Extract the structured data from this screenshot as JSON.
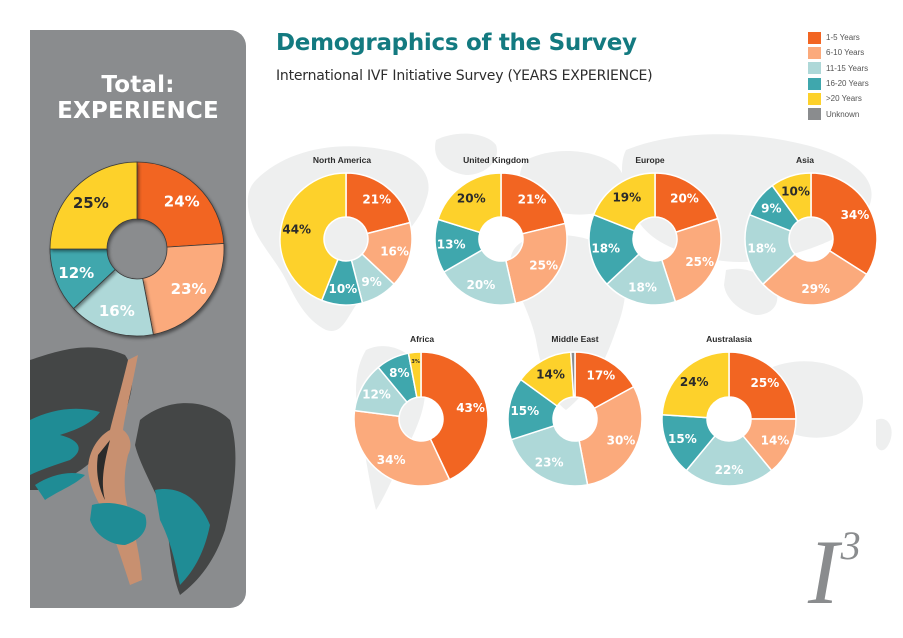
{
  "header": {
    "title": "Demographics of the Survey",
    "subtitle": "International IVF Initiative Survey (YEARS EXPERIENCE)"
  },
  "left_panel": {
    "title_line1": "Total:",
    "title_line2": "EXPERIENCE",
    "illustration": "winged-figure-illustration"
  },
  "logo": {
    "base": "I",
    "superscript": "3"
  },
  "colors": {
    "1-5 Years": "#f26522",
    "6-10 Years": "#fbaa7c",
    "11-15 Years": "#aed8d8",
    "16-20 Years": "#3fa7ad",
    ">20 Years": "#fdd12b",
    "Unknown": "#8a8c8e",
    "title": "#137a80",
    "panel": "#8a8c8e"
  },
  "legend": [
    {
      "label": "1-5 Years",
      "color": "#f26522"
    },
    {
      "label": "6-10 Years",
      "color": "#fbaa7c"
    },
    {
      "label": "11-15 Years",
      "color": "#aed8d8"
    },
    {
      "label": "16-20 Years",
      "color": "#3fa7ad"
    },
    {
      "label": ">20 Years",
      "color": "#fdd12b"
    },
    {
      "label": "Unknown",
      "color": "#8a8c8e"
    }
  ],
  "chart_data": [
    {
      "type": "pie",
      "variant": "donut",
      "title": "Total: EXPERIENCE",
      "categories": [
        "1-5 Years",
        "6-10 Years",
        "11-15 Years",
        "16-20 Years",
        ">20 Years"
      ],
      "values": [
        24,
        23,
        16,
        12,
        25
      ],
      "labels": [
        "24%",
        "23%",
        "16%",
        "12%",
        "25%"
      ]
    },
    {
      "type": "pie",
      "variant": "donut",
      "title": "North America",
      "categories": [
        "1-5 Years",
        "6-10 Years",
        "11-15 Years",
        "16-20 Years",
        ">20 Years"
      ],
      "values": [
        21,
        16,
        9,
        10,
        44
      ],
      "labels": [
        "21%",
        "16%",
        "9%",
        "10%",
        "44%"
      ]
    },
    {
      "type": "pie",
      "variant": "donut",
      "title": "United Kingdom",
      "categories": [
        "1-5 Years",
        "6-10 Years",
        "11-15 Years",
        "16-20 Years",
        ">20 Years"
      ],
      "values": [
        21,
        25,
        20,
        13,
        20
      ],
      "labels": [
        "21%",
        "25%",
        "20%",
        "13%",
        "20%"
      ]
    },
    {
      "type": "pie",
      "variant": "donut",
      "title": "Europe",
      "categories": [
        "1-5 Years",
        "6-10 Years",
        "11-15 Years",
        "16-20 Years",
        ">20 Years"
      ],
      "values": [
        20,
        25,
        18,
        18,
        19
      ],
      "labels": [
        "20%",
        "25%",
        "18%",
        "18%",
        "19%"
      ]
    },
    {
      "type": "pie",
      "variant": "donut",
      "title": "Asia",
      "categories": [
        "1-5 Years",
        "6-10 Years",
        "11-15 Years",
        "16-20 Years",
        ">20 Years"
      ],
      "values": [
        34,
        29,
        18,
        9,
        10
      ],
      "labels": [
        "34%",
        "29%",
        "18%",
        "9%",
        "10%"
      ]
    },
    {
      "type": "pie",
      "variant": "donut",
      "title": "Africa",
      "categories": [
        "1-5 Years",
        "6-10 Years",
        "11-15 Years",
        "16-20 Years",
        ">20 Years"
      ],
      "values": [
        43,
        34,
        12,
        8,
        3
      ],
      "labels": [
        "43%",
        "34%",
        "12%",
        "8%",
        "3%"
      ]
    },
    {
      "type": "pie",
      "variant": "donut",
      "title": "Middle East",
      "categories": [
        "1-5 Years",
        "6-10 Years",
        "11-15 Years",
        "16-20 Years",
        ">20 Years",
        "Unknown"
      ],
      "values": [
        17,
        30,
        23,
        15,
        14,
        1
      ],
      "labels": [
        "17%",
        "30%",
        "23%",
        "15%",
        "14%",
        ""
      ]
    },
    {
      "type": "pie",
      "variant": "donut",
      "title": "Australasia",
      "categories": [
        "1-5 Years",
        "6-10 Years",
        "11-15 Years",
        "16-20 Years",
        ">20 Years"
      ],
      "values": [
        25,
        14,
        22,
        15,
        24
      ],
      "labels": [
        "25%",
        "14%",
        "22%",
        "15%",
        "24%"
      ]
    }
  ]
}
